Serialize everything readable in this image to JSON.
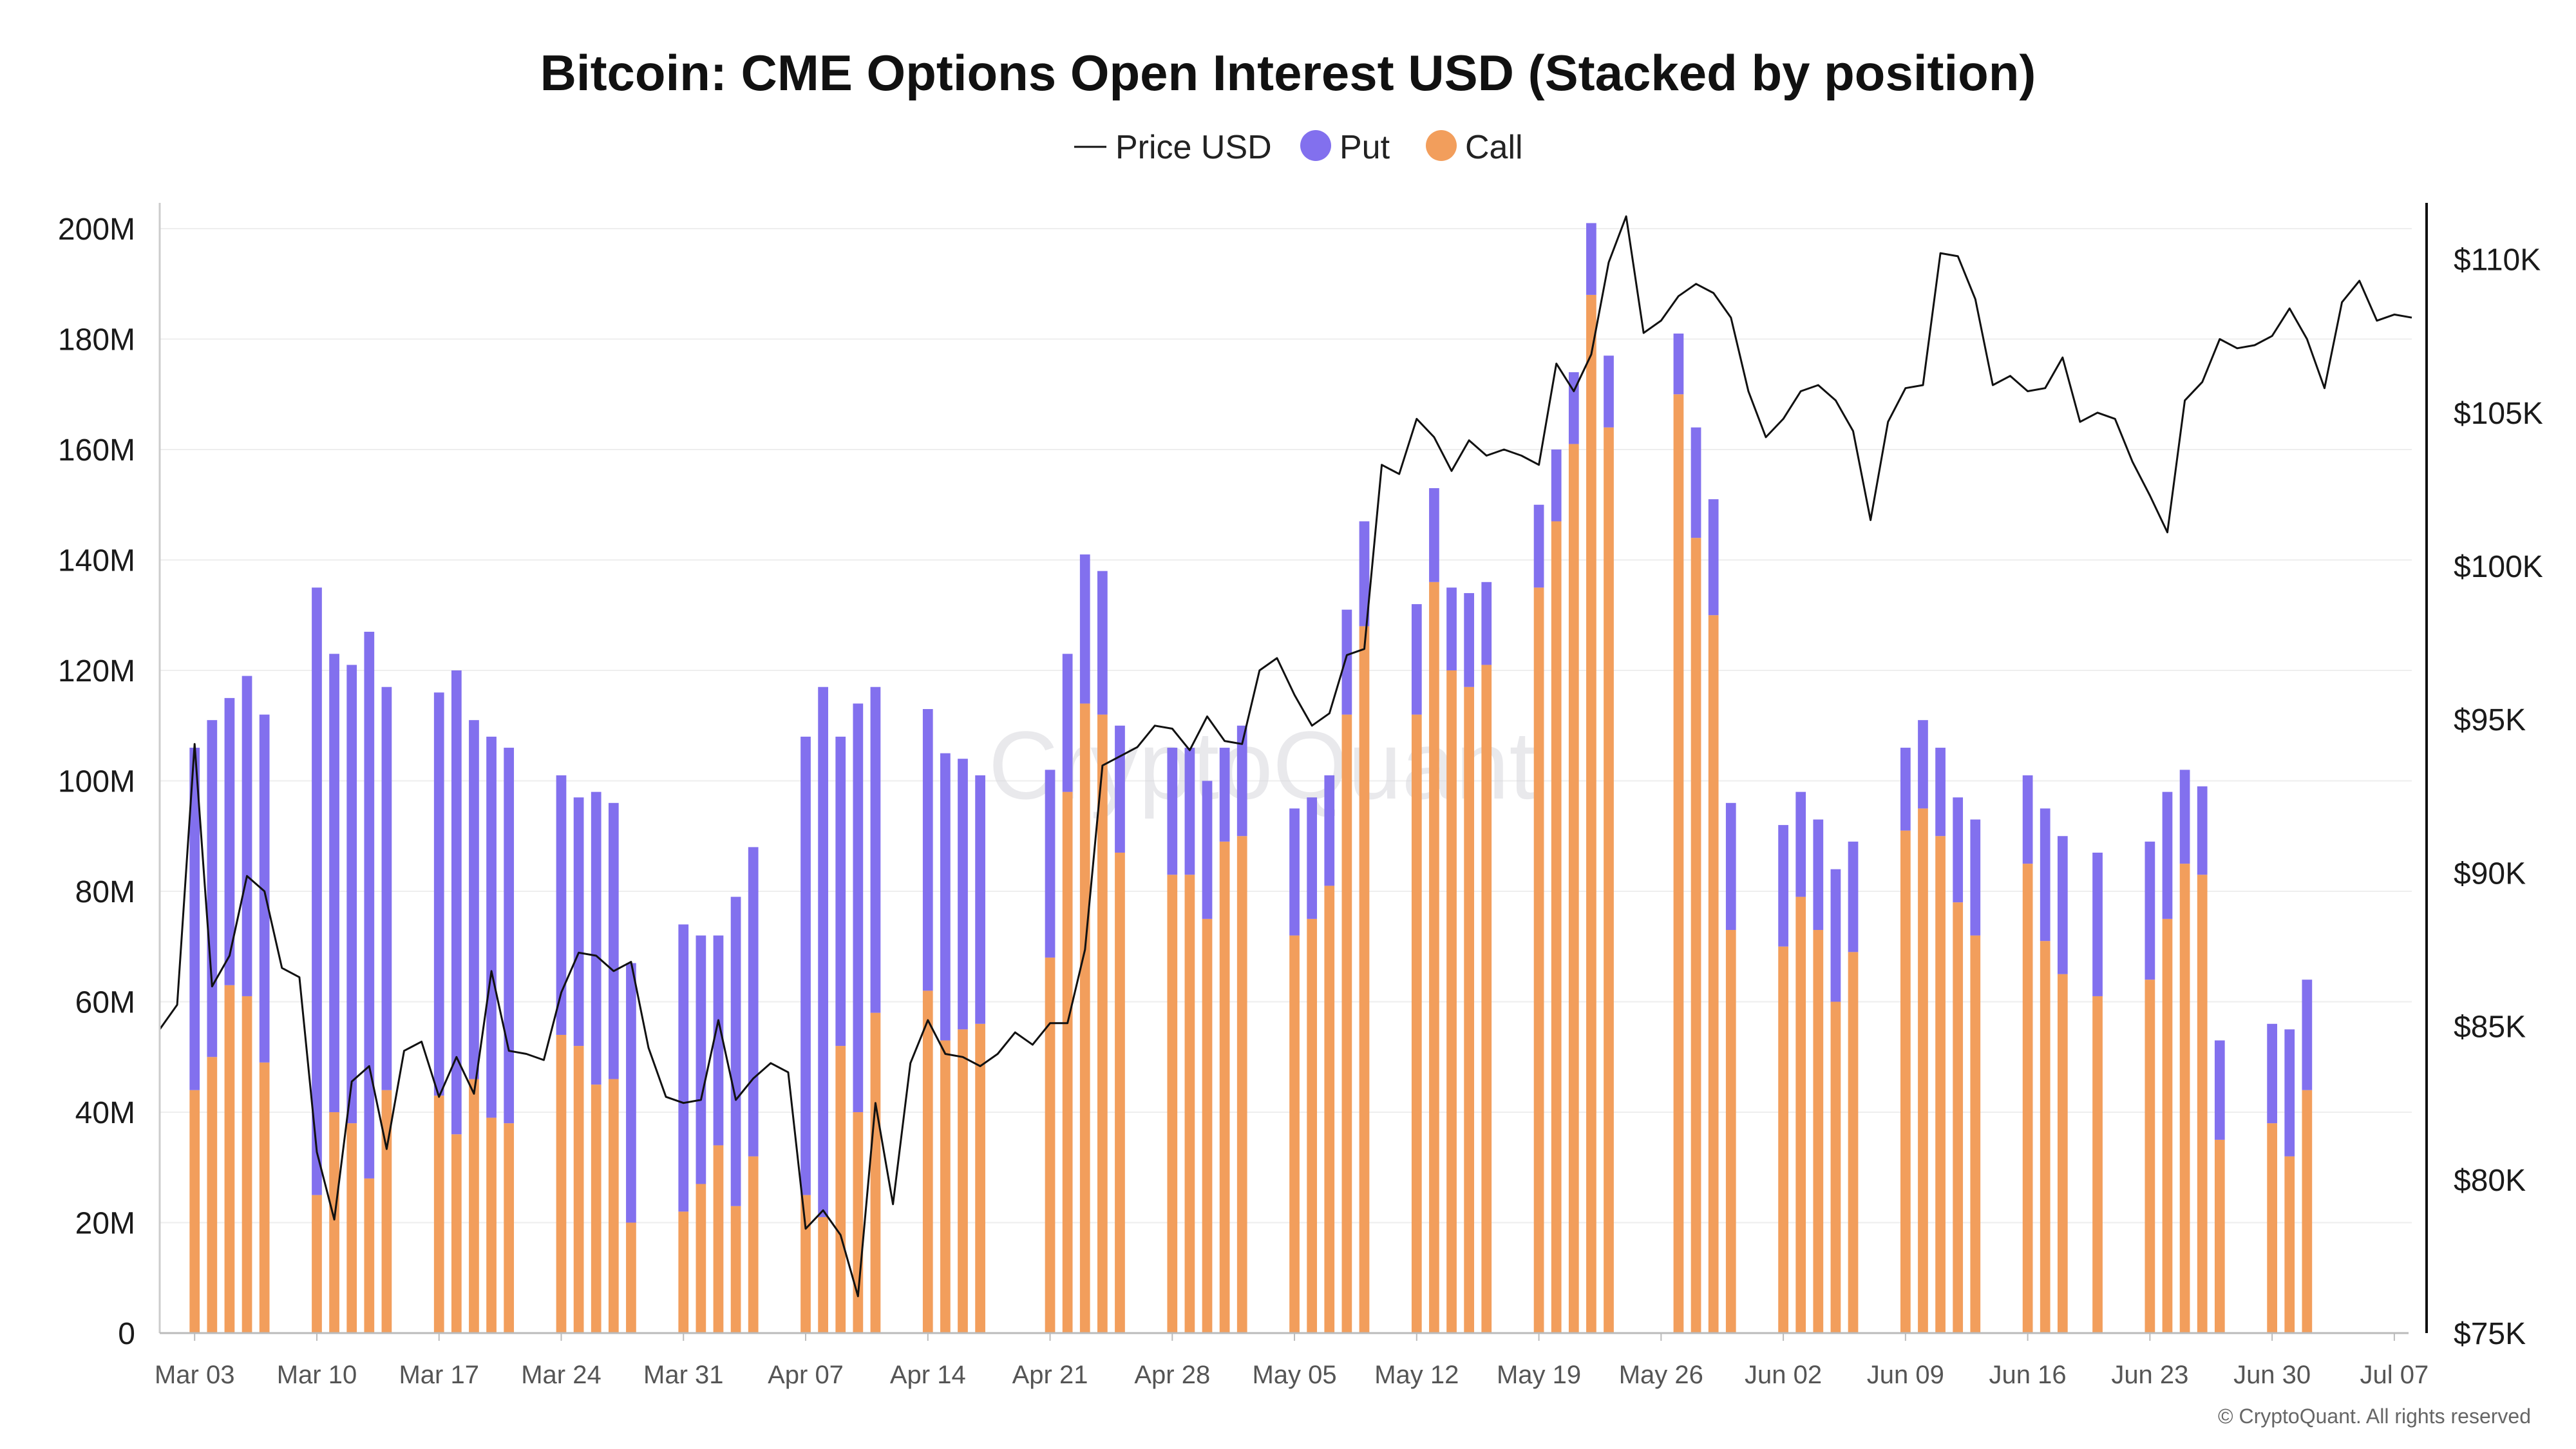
{
  "chart_data": {
    "type": "bar",
    "title": "Bitcoin: CME Options Open Interest USD (Stacked by position)",
    "legend": [
      "Price USD",
      "Put",
      "Call"
    ],
    "legend_placement": "top-center",
    "colors": {
      "put": "#8270ee",
      "call": "#f29e5c",
      "price": "#111111",
      "grid": "#eeeeee",
      "axis": "#999999"
    },
    "watermark": "CryptoQuant",
    "copyright": "© CryptoQuant. All rights reserved",
    "x_range": [
      "2025-03-01",
      "2025-07-08"
    ],
    "x_ticks": [
      "Mar 03",
      "Mar 10",
      "Mar 17",
      "Mar 24",
      "Mar 31",
      "Apr 07",
      "Apr 14",
      "Apr 21",
      "Apr 28",
      "May 05",
      "May 12",
      "May 19",
      "May 26",
      "Jun 02",
      "Jun 09",
      "Jun 16",
      "Jun 23",
      "Jun 30",
      "Jul 07"
    ],
    "x_tick_dates": [
      "2025-03-03",
      "2025-03-10",
      "2025-03-17",
      "2025-03-24",
      "2025-03-31",
      "2025-04-07",
      "2025-04-14",
      "2025-04-21",
      "2025-04-28",
      "2025-05-05",
      "2025-05-12",
      "2025-05-19",
      "2025-05-26",
      "2025-06-02",
      "2025-06-09",
      "2025-06-16",
      "2025-06-23",
      "2025-06-30",
      "2025-07-07"
    ],
    "y_left": {
      "label": "",
      "min": 0,
      "max": 200000000,
      "ticks": [
        0,
        20000000,
        40000000,
        60000000,
        80000000,
        100000000,
        120000000,
        140000000,
        160000000,
        180000000,
        200000000
      ],
      "tick_labels": [
        "0",
        "20M",
        "40M",
        "60M",
        "80M",
        "100M",
        "120M",
        "140M",
        "160M",
        "180M",
        "200M"
      ]
    },
    "y_right": {
      "label": "",
      "min": 75000,
      "max": 111000,
      "ticks": [
        75000,
        80000,
        85000,
        90000,
        95000,
        100000,
        105000,
        110000
      ],
      "tick_labels": [
        "$75K",
        "$80K",
        "$85K",
        "$90K",
        "$95K",
        "$100K",
        "$105K",
        "$110K"
      ]
    },
    "grid": true,
    "bars": {
      "dates": [
        "2025-03-03",
        "2025-03-04",
        "2025-03-05",
        "2025-03-06",
        "2025-03-07",
        "2025-03-10",
        "2025-03-11",
        "2025-03-12",
        "2025-03-13",
        "2025-03-14",
        "2025-03-17",
        "2025-03-18",
        "2025-03-19",
        "2025-03-20",
        "2025-03-21",
        "2025-03-24",
        "2025-03-25",
        "2025-03-26",
        "2025-03-27",
        "2025-03-28",
        "2025-03-31",
        "2025-04-01",
        "2025-04-02",
        "2025-04-03",
        "2025-04-04",
        "2025-04-07",
        "2025-04-08",
        "2025-04-09",
        "2025-04-10",
        "2025-04-11",
        "2025-04-14",
        "2025-04-15",
        "2025-04-16",
        "2025-04-17",
        "2025-04-21",
        "2025-04-22",
        "2025-04-23",
        "2025-04-24",
        "2025-04-25",
        "2025-04-28",
        "2025-04-29",
        "2025-04-30",
        "2025-05-01",
        "2025-05-02",
        "2025-05-05",
        "2025-05-06",
        "2025-05-07",
        "2025-05-08",
        "2025-05-09",
        "2025-05-12",
        "2025-05-13",
        "2025-05-14",
        "2025-05-15",
        "2025-05-16",
        "2025-05-19",
        "2025-05-20",
        "2025-05-21",
        "2025-05-22",
        "2025-05-23",
        "2025-05-27",
        "2025-05-28",
        "2025-05-29",
        "2025-05-30",
        "2025-06-02",
        "2025-06-03",
        "2025-06-04",
        "2025-06-05",
        "2025-06-06",
        "2025-06-09",
        "2025-06-10",
        "2025-06-11",
        "2025-06-12",
        "2025-06-13",
        "2025-06-16",
        "2025-06-17",
        "2025-06-18",
        "2025-06-20",
        "2025-06-23",
        "2025-06-24",
        "2025-06-25",
        "2025-06-26",
        "2025-06-27",
        "2025-06-30",
        "2025-07-01",
        "2025-07-02"
      ],
      "call": [
        44,
        50,
        63,
        61,
        49,
        25,
        40,
        38,
        28,
        44,
        43,
        36,
        46,
        39,
        38,
        54,
        52,
        45,
        46,
        20,
        22,
        27,
        34,
        23,
        32,
        25,
        21,
        52,
        40,
        58,
        62,
        53,
        55,
        56,
        68,
        98,
        114,
        112,
        87,
        83,
        83,
        75,
        89,
        90,
        72,
        75,
        81,
        112,
        128,
        112,
        136,
        120,
        117,
        121,
        135,
        147,
        161,
        188,
        164,
        170,
        144,
        130,
        73,
        70,
        79,
        73,
        60,
        69,
        91,
        95,
        90,
        78,
        72,
        85,
        71,
        65,
        61,
        64,
        75,
        85,
        83,
        35,
        38,
        32,
        44
      ],
      "put": [
        62,
        61,
        52,
        58,
        63,
        110,
        83,
        83,
        99,
        73,
        73,
        84,
        65,
        69,
        68,
        47,
        45,
        53,
        50,
        47,
        52,
        45,
        38,
        56,
        56,
        83,
        96,
        56,
        74,
        59,
        51,
        52,
        49,
        45,
        34,
        25,
        27,
        26,
        23,
        23,
        23,
        25,
        17,
        20,
        23,
        22,
        20,
        19,
        19,
        20,
        17,
        15,
        17,
        15,
        15,
        13,
        13,
        13,
        13,
        11,
        20,
        21,
        23,
        22,
        19,
        20,
        24,
        20,
        15,
        16,
        16,
        19,
        21,
        16,
        24,
        25,
        26,
        25,
        23,
        17,
        16,
        18,
        18,
        23,
        20
      ]
    },
    "price_series_usd": [
      [
        "2025-03-01",
        84900
      ],
      [
        "2025-03-02",
        85700
      ],
      [
        "2025-03-03",
        94200
      ],
      [
        "2025-03-04",
        86300
      ],
      [
        "2025-03-05",
        87300
      ],
      [
        "2025-03-06",
        89900
      ],
      [
        "2025-03-07",
        89400
      ],
      [
        "2025-03-08",
        86900
      ],
      [
        "2025-03-09",
        86600
      ],
      [
        "2025-03-10",
        80900
      ],
      [
        "2025-03-11",
        78700
      ],
      [
        "2025-03-12",
        83200
      ],
      [
        "2025-03-13",
        83700
      ],
      [
        "2025-03-14",
        81000
      ],
      [
        "2025-03-15",
        84200
      ],
      [
        "2025-03-16",
        84500
      ],
      [
        "2025-03-17",
        82700
      ],
      [
        "2025-03-18",
        84000
      ],
      [
        "2025-03-19",
        82800
      ],
      [
        "2025-03-20",
        86800
      ],
      [
        "2025-03-21",
        84200
      ],
      [
        "2025-03-22",
        84100
      ],
      [
        "2025-03-23",
        83900
      ],
      [
        "2025-03-24",
        86100
      ],
      [
        "2025-03-25",
        87400
      ],
      [
        "2025-03-26",
        87300
      ],
      [
        "2025-03-27",
        86800
      ],
      [
        "2025-03-28",
        87100
      ],
      [
        "2025-03-29",
        84300
      ],
      [
        "2025-03-30",
        82700
      ],
      [
        "2025-03-31",
        82500
      ],
      [
        "2025-04-01",
        82600
      ],
      [
        "2025-04-02",
        85200
      ],
      [
        "2025-04-03",
        82600
      ],
      [
        "2025-04-04",
        83300
      ],
      [
        "2025-04-05",
        83800
      ],
      [
        "2025-04-06",
        83500
      ],
      [
        "2025-04-07",
        78400
      ],
      [
        "2025-04-08",
        79000
      ],
      [
        "2025-04-09",
        78200
      ],
      [
        "2025-04-10",
        76200
      ],
      [
        "2025-04-11",
        82500
      ],
      [
        "2025-04-12",
        79200
      ],
      [
        "2025-04-13",
        83800
      ],
      [
        "2025-04-14",
        85200
      ],
      [
        "2025-04-15",
        84100
      ],
      [
        "2025-04-16",
        84000
      ],
      [
        "2025-04-17",
        83700
      ],
      [
        "2025-04-18",
        84100
      ],
      [
        "2025-04-19",
        84800
      ],
      [
        "2025-04-20",
        84400
      ],
      [
        "2025-04-21",
        85100
      ],
      [
        "2025-04-22",
        85100
      ],
      [
        "2025-04-23",
        87500
      ],
      [
        "2025-04-24",
        93500
      ],
      [
        "2025-04-25",
        93800
      ],
      [
        "2025-04-26",
        94100
      ],
      [
        "2025-04-27",
        94800
      ],
      [
        "2025-04-28",
        94700
      ],
      [
        "2025-04-29",
        94000
      ],
      [
        "2025-04-30",
        95100
      ],
      [
        "2025-05-01",
        94300
      ],
      [
        "2025-05-02",
        94200
      ],
      [
        "2025-05-03",
        96600
      ],
      [
        "2025-05-04",
        97000
      ],
      [
        "2025-05-05",
        95800
      ],
      [
        "2025-05-06",
        94800
      ],
      [
        "2025-05-07",
        95200
      ],
      [
        "2025-05-08",
        97100
      ],
      [
        "2025-05-09",
        97300
      ],
      [
        "2025-05-10",
        103300
      ],
      [
        "2025-05-11",
        103000
      ],
      [
        "2025-05-12",
        104800
      ],
      [
        "2025-05-13",
        104200
      ],
      [
        "2025-05-14",
        103100
      ],
      [
        "2025-05-15",
        104100
      ],
      [
        "2025-05-16",
        103600
      ],
      [
        "2025-05-17",
        103800
      ],
      [
        "2025-05-18",
        103600
      ],
      [
        "2025-05-19",
        103300
      ],
      [
        "2025-05-20",
        106600
      ],
      [
        "2025-05-21",
        105700
      ],
      [
        "2025-05-22",
        106900
      ],
      [
        "2025-05-23",
        109900
      ],
      [
        "2025-05-24",
        111400
      ],
      [
        "2025-05-25",
        107600
      ],
      [
        "2025-05-26",
        108000
      ],
      [
        "2025-05-27",
        108800
      ],
      [
        "2025-05-28",
        109200
      ],
      [
        "2025-05-29",
        108900
      ],
      [
        "2025-05-30",
        108100
      ],
      [
        "2025-05-31",
        105700
      ],
      [
        "2025-06-01",
        104200
      ],
      [
        "2025-06-02",
        104800
      ],
      [
        "2025-06-03",
        105700
      ],
      [
        "2025-06-04",
        105900
      ],
      [
        "2025-06-05",
        105400
      ],
      [
        "2025-06-06",
        104400
      ],
      [
        "2025-06-07",
        101500
      ],
      [
        "2025-06-08",
        104700
      ],
      [
        "2025-06-09",
        105800
      ],
      [
        "2025-06-10",
        105900
      ],
      [
        "2025-06-11",
        110200
      ],
      [
        "2025-06-12",
        110100
      ],
      [
        "2025-06-13",
        108700
      ],
      [
        "2025-06-14",
        105900
      ],
      [
        "2025-06-15",
        106200
      ],
      [
        "2025-06-16",
        105700
      ],
      [
        "2025-06-17",
        105800
      ],
      [
        "2025-06-18",
        106800
      ],
      [
        "2025-06-19",
        104700
      ],
      [
        "2025-06-20",
        105000
      ],
      [
        "2025-06-21",
        104800
      ],
      [
        "2025-06-22",
        103400
      ],
      [
        "2025-06-23",
        102300
      ],
      [
        "2025-06-24",
        101100
      ],
      [
        "2025-06-25",
        105400
      ],
      [
        "2025-06-26",
        106000
      ],
      [
        "2025-06-27",
        107400
      ],
      [
        "2025-06-28",
        107100
      ],
      [
        "2025-06-29",
        107200
      ],
      [
        "2025-06-30",
        107500
      ],
      [
        "2025-07-01",
        108400
      ],
      [
        "2025-07-02",
        107400
      ],
      [
        "2025-07-03",
        105800
      ],
      [
        "2025-07-04",
        108600
      ],
      [
        "2025-07-05",
        109300
      ],
      [
        "2025-07-06",
        108000
      ],
      [
        "2025-07-07",
        108200
      ],
      [
        "2025-07-08",
        108100
      ]
    ]
  }
}
